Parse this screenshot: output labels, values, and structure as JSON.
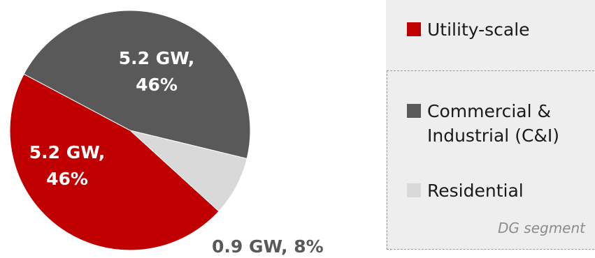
{
  "chart_data": {
    "type": "pie",
    "title": "",
    "unit": "GW",
    "slices": [
      {
        "name": "Utility-scale",
        "value": 5.2,
        "percent": 46,
        "color": "#c00000",
        "label_lines": [
          "5.2 GW,",
          "46%"
        ]
      },
      {
        "name": "Commercial & Industrial (C&I)",
        "value": 5.2,
        "percent": 46,
        "color": "#595959",
        "label_lines": [
          "5.2 GW,",
          "46%"
        ]
      },
      {
        "name": "Residential",
        "value": 0.9,
        "percent": 8,
        "color": "#d9d9d9",
        "label": "0.9 GW, 8%"
      }
    ],
    "legend": {
      "placement": "right",
      "items": [
        {
          "lines": [
            "Utility-scale"
          ],
          "color": "#c00000"
        },
        {
          "lines": [
            "Commercial &",
            "Industrial (C&I)"
          ],
          "color": "#595959"
        },
        {
          "lines": [
            "Residential"
          ],
          "color": "#d9d9d9"
        }
      ],
      "group_caption": "DG segment"
    }
  }
}
